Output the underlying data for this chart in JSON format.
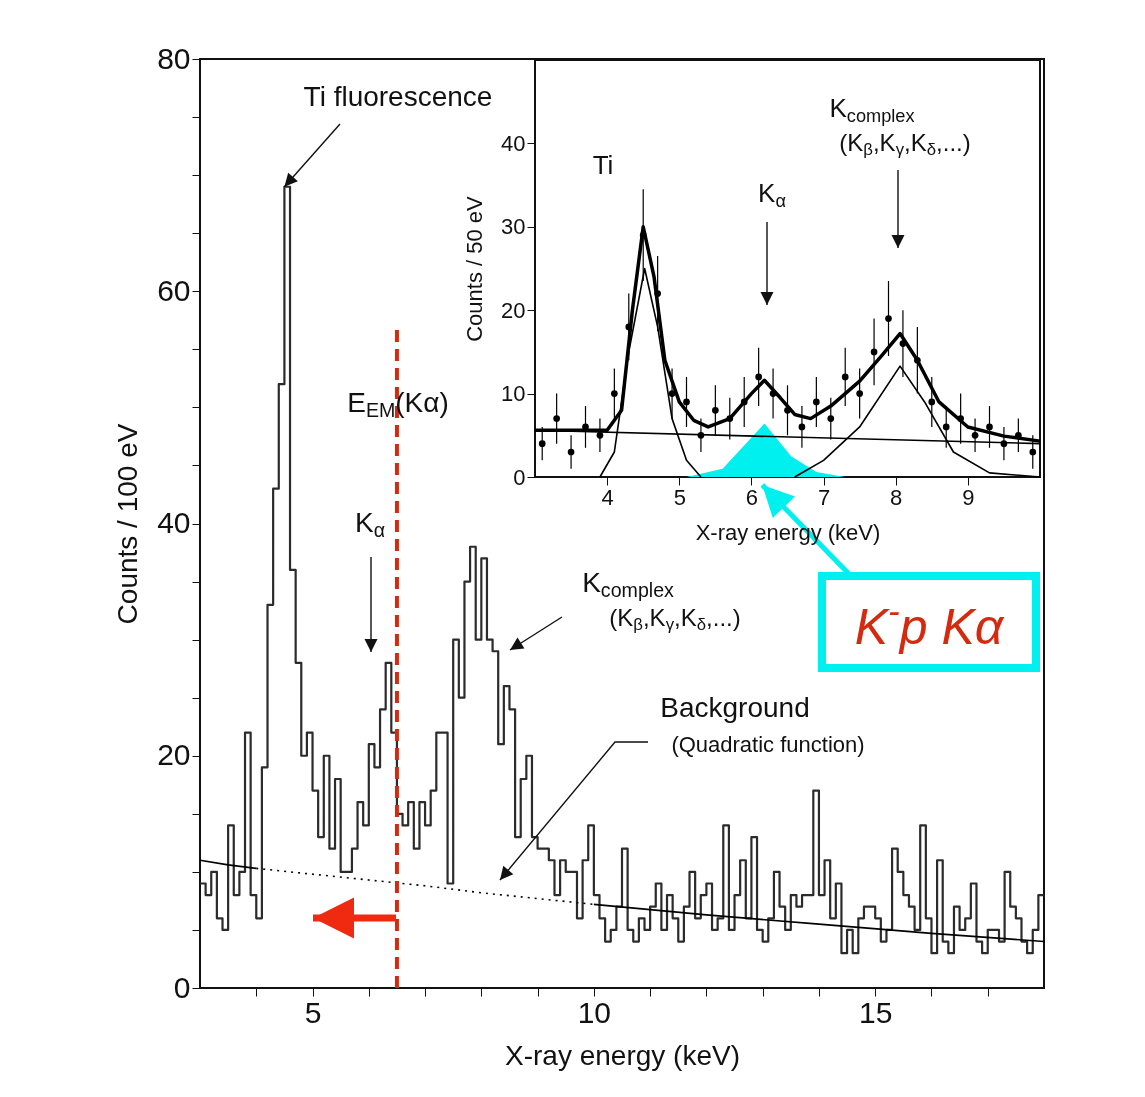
{
  "chart_data": [
    {
      "type": "histogram",
      "xlabel": "X-ray energy (keV)",
      "ylabel": "Counts  / 100 eV",
      "color": "#2b2b2b",
      "bins": [
        3.0,
        3.1,
        3.2,
        3.3,
        3.4,
        3.5,
        3.6,
        3.7,
        3.8,
        3.9,
        4.0,
        4.1,
        4.2,
        4.3,
        4.4,
        4.5,
        4.6,
        4.7,
        4.8,
        4.9,
        5.0,
        5.1,
        5.2,
        5.3,
        5.4,
        5.5,
        5.6,
        5.7,
        5.8,
        5.9,
        6.0,
        6.1,
        6.2,
        6.3,
        6.4,
        6.5,
        6.6,
        6.7,
        6.8,
        6.9,
        7.0,
        7.1,
        7.2,
        7.3,
        7.4,
        7.5,
        7.6,
        7.7,
        7.8,
        7.9,
        8.0,
        8.1,
        8.2,
        8.3,
        8.4,
        8.5,
        8.6,
        8.7,
        8.8,
        8.9,
        9.0,
        9.1,
        9.2,
        9.3,
        9.4,
        9.5,
        9.6,
        9.7,
        9.8,
        9.9,
        10.0,
        10.1,
        10.2,
        10.3,
        10.4,
        10.5,
        10.6,
        10.7,
        10.8,
        10.9,
        11.0,
        11.1,
        11.2,
        11.3,
        11.4,
        11.5,
        11.6,
        11.7,
        11.8,
        11.9,
        12.0,
        12.1,
        12.2,
        12.3,
        12.4,
        12.5,
        12.6,
        12.7,
        12.8,
        12.9,
        13.0,
        13.1,
        13.2,
        13.3,
        13.4,
        13.5,
        13.6,
        13.7,
        13.8,
        13.9,
        14.0,
        14.1,
        14.2,
        14.3,
        14.4,
        14.5,
        14.6,
        14.7,
        14.8,
        14.9,
        15.0,
        15.1,
        15.2,
        15.3,
        15.4,
        15.5,
        15.6,
        15.7,
        15.8,
        15.9,
        16.0,
        16.1,
        16.2,
        16.3,
        16.4,
        16.5,
        16.6,
        16.7,
        16.8,
        16.9,
        17.0,
        17.1,
        17.2,
        17.3,
        17.4,
        17.5,
        17.6,
        17.7,
        17.8,
        17.9,
        18.0
      ],
      "values": [
        9,
        8,
        10,
        6,
        5,
        14,
        8,
        10,
        22,
        8,
        6,
        19,
        33,
        43,
        52,
        69,
        36,
        28,
        20,
        22,
        17,
        13,
        20,
        12,
        18,
        10,
        10,
        12,
        16,
        14,
        21,
        19,
        24,
        28,
        22,
        15,
        14,
        16,
        12,
        16,
        14,
        17,
        22,
        22,
        9,
        30,
        25,
        35,
        38,
        30,
        37,
        30,
        29,
        21,
        26,
        24,
        13,
        18,
        20,
        13,
        12,
        12,
        11,
        8,
        11,
        10,
        10,
        6,
        11,
        14,
        8,
        6,
        4,
        5,
        7,
        12,
        5,
        4,
        6,
        5,
        7,
        9,
        5,
        8,
        6,
        4,
        7,
        10,
        6,
        8,
        9,
        5,
        6,
        14,
        5,
        8,
        11,
        6,
        13,
        5,
        4,
        6,
        10,
        7,
        5,
        8,
        7,
        8,
        8,
        17,
        8,
        11,
        6,
        9,
        3,
        5,
        3,
        6,
        7,
        7,
        6,
        4,
        5,
        12,
        10,
        8,
        7,
        5,
        14,
        6,
        3,
        11,
        4,
        3,
        7,
        5,
        6,
        9,
        4,
        3,
        5,
        5,
        4,
        10,
        7,
        6,
        4,
        3,
        5,
        8
      ],
      "series": [
        {
          "type": "line",
          "x": [
            3,
            3.5,
            4
          ],
          "values": [
            11,
            10.6,
            10.3
          ],
          "color": "#000000",
          "line_style": "solid"
        },
        {
          "type": "line",
          "x": [
            4,
            5,
            6,
            7,
            8,
            9,
            10
          ],
          "values": [
            10.3,
            9.8,
            9.3,
            8.8,
            8.2,
            7.7,
            7.2
          ],
          "color": "#000000",
          "line_style": "dotted"
        },
        {
          "type": "line",
          "x": [
            10,
            12,
            14,
            16,
            18
          ],
          "values": [
            7.2,
            6.3,
            5.5,
            4.7,
            4
          ],
          "color": "#000000",
          "line_style": "solid"
        },
        {
          "type": "line",
          "x": [
            6.5,
            6.5
          ],
          "values": [
            0,
            57
          ],
          "color": "#d42a0f",
          "line_style": "dashed"
        }
      ],
      "xlim": [
        3,
        18
      ],
      "ylim": [
        0,
        80
      ],
      "xticks": [
        {
          "value": 4,
          "label": null
        },
        5,
        {
          "value": 6,
          "label": null
        },
        {
          "value": 7,
          "label": null
        },
        {
          "value": 8,
          "label": null
        },
        {
          "value": 9,
          "label": null
        },
        10,
        {
          "value": 11,
          "label": null
        },
        {
          "value": 12,
          "label": null
        },
        {
          "value": 13,
          "label": null
        },
        {
          "value": 14,
          "label": null
        },
        15,
        {
          "value": 16,
          "label": null
        },
        {
          "value": 17,
          "label": null
        }
      ],
      "yticks": [
        0,
        {
          "value": 5,
          "label": null
        },
        {
          "value": 10,
          "label": null
        },
        {
          "value": 15,
          "label": null
        },
        20,
        {
          "value": 25,
          "label": null
        },
        {
          "value": 30,
          "label": null
        },
        {
          "value": 35,
          "label": null
        },
        40,
        {
          "value": 45,
          "label": null
        },
        {
          "value": 50,
          "label": null
        },
        {
          "value": 55,
          "label": null
        },
        60,
        {
          "value": 65,
          "label": null
        },
        {
          "value": 70,
          "label": null
        },
        {
          "value": 75,
          "label": null
        },
        80
      ],
      "annotations": [
        {
          "text": "Ti fluorescence",
          "x": 4.5,
          "y": 69
        },
        "E$_{EM}$(Kα)",
        "K$_{α}$",
        "K$_{complex}$",
        "(K$_{β}$,K$_{γ}$,K$_{δ}$,...)",
        "Background",
        "(Quadratic function)"
      ]
    },
    {
      "type": "line",
      "xlabel": "X-ray energy (keV)",
      "ylabel": "Counts / 50 eV",
      "series": [
        {
          "type": "area",
          "x": [
            5.1,
            5.6,
            6.18,
            6.55,
            6.9,
            7.3
          ],
          "values": [
            0,
            1,
            6.4,
            2.5,
            0.6,
            0
          ],
          "color": "#00f0f0"
        },
        {
          "type": "line",
          "x": [
            3,
            10
          ],
          "values": [
            5.6,
            4.0
          ],
          "color": "#000000"
        },
        {
          "type": "line",
          "x": [
            3.9,
            4.1,
            4.3,
            4.52,
            4.7,
            4.9,
            5.1,
            5.3
          ],
          "values": [
            0,
            3,
            15,
            25,
            18,
            7,
            2,
            0
          ],
          "color": "#000000"
        },
        {
          "type": "line",
          "x": [
            6.6,
            7.0,
            7.5,
            8.06,
            8.4,
            8.8,
            9.3,
            10
          ],
          "values": [
            0,
            2,
            6,
            13.3,
            9,
            3,
            0.5,
            0
          ],
          "color": "#000000"
        },
        {
          "type": "line",
          "x": [
            3,
            4,
            4.2,
            4.35,
            4.5,
            4.65,
            4.8,
            5.0,
            5.2,
            5.4,
            5.7,
            6.0,
            6.18,
            6.4,
            6.6,
            6.82,
            7.1,
            7.5,
            7.8,
            8.06,
            8.3,
            8.6,
            9.0,
            9.5,
            10
          ],
          "values": [
            5.6,
            5.6,
            8,
            20,
            30,
            24,
            14,
            9,
            6.8,
            6,
            7,
            10,
            11.6,
            9.5,
            7.5,
            7,
            8.5,
            11.5,
            14.5,
            17.2,
            14,
            9,
            6,
            4.9,
            4.3
          ],
          "color": "#000000"
        },
        {
          "type": "scatter",
          "marker": "circle",
          "x": [
            3.1,
            3.3,
            3.5,
            3.7,
            3.9,
            4.1,
            4.3,
            4.5,
            4.7,
            4.9,
            5.1,
            5.3,
            5.5,
            5.7,
            5.9,
            6.1,
            6.3,
            6.5,
            6.7,
            6.9,
            7.1,
            7.3,
            7.5,
            7.7,
            7.9,
            8.1,
            8.3,
            8.5,
            8.7,
            8.9,
            9.1,
            9.3,
            9.5,
            9.7,
            9.9
          ],
          "values": [
            4,
            7,
            3,
            6,
            5,
            10,
            18,
            29,
            22,
            10,
            9,
            5,
            8,
            7,
            9,
            12,
            10,
            8,
            6,
            9,
            7,
            12,
            10,
            15,
            19,
            16,
            14,
            9,
            6,
            7,
            5,
            6,
            4,
            5,
            3
          ],
          "errors": [
            2,
            3,
            2,
            2.5,
            2,
            3,
            4,
            5.5,
            4.5,
            3,
            3,
            2,
            3,
            2.5,
            3,
            3.5,
            3,
            3,
            2.5,
            3,
            2.5,
            3.5,
            3,
            4,
            4.5,
            4,
            4,
            3,
            2.5,
            3,
            2,
            2.5,
            2,
            2,
            2
          ],
          "color": "#000000"
        }
      ],
      "xlim": [
        3,
        10
      ],
      "ylim": [
        0,
        50
      ],
      "xticks": [
        4,
        5,
        6,
        7,
        8,
        9
      ],
      "yticks": [
        0,
        10,
        20,
        30,
        40
      ],
      "annotations": [
        "Ti",
        "K$_{α}$",
        "K$_{complex}$",
        "(K$_{β}$,K$_{γ}$,K$_{δ}$,...)",
        {
          "text": "K$^{-}$p Kα",
          "x": 6.15,
          "y": 0
        }
      ]
    }
  ]
}
